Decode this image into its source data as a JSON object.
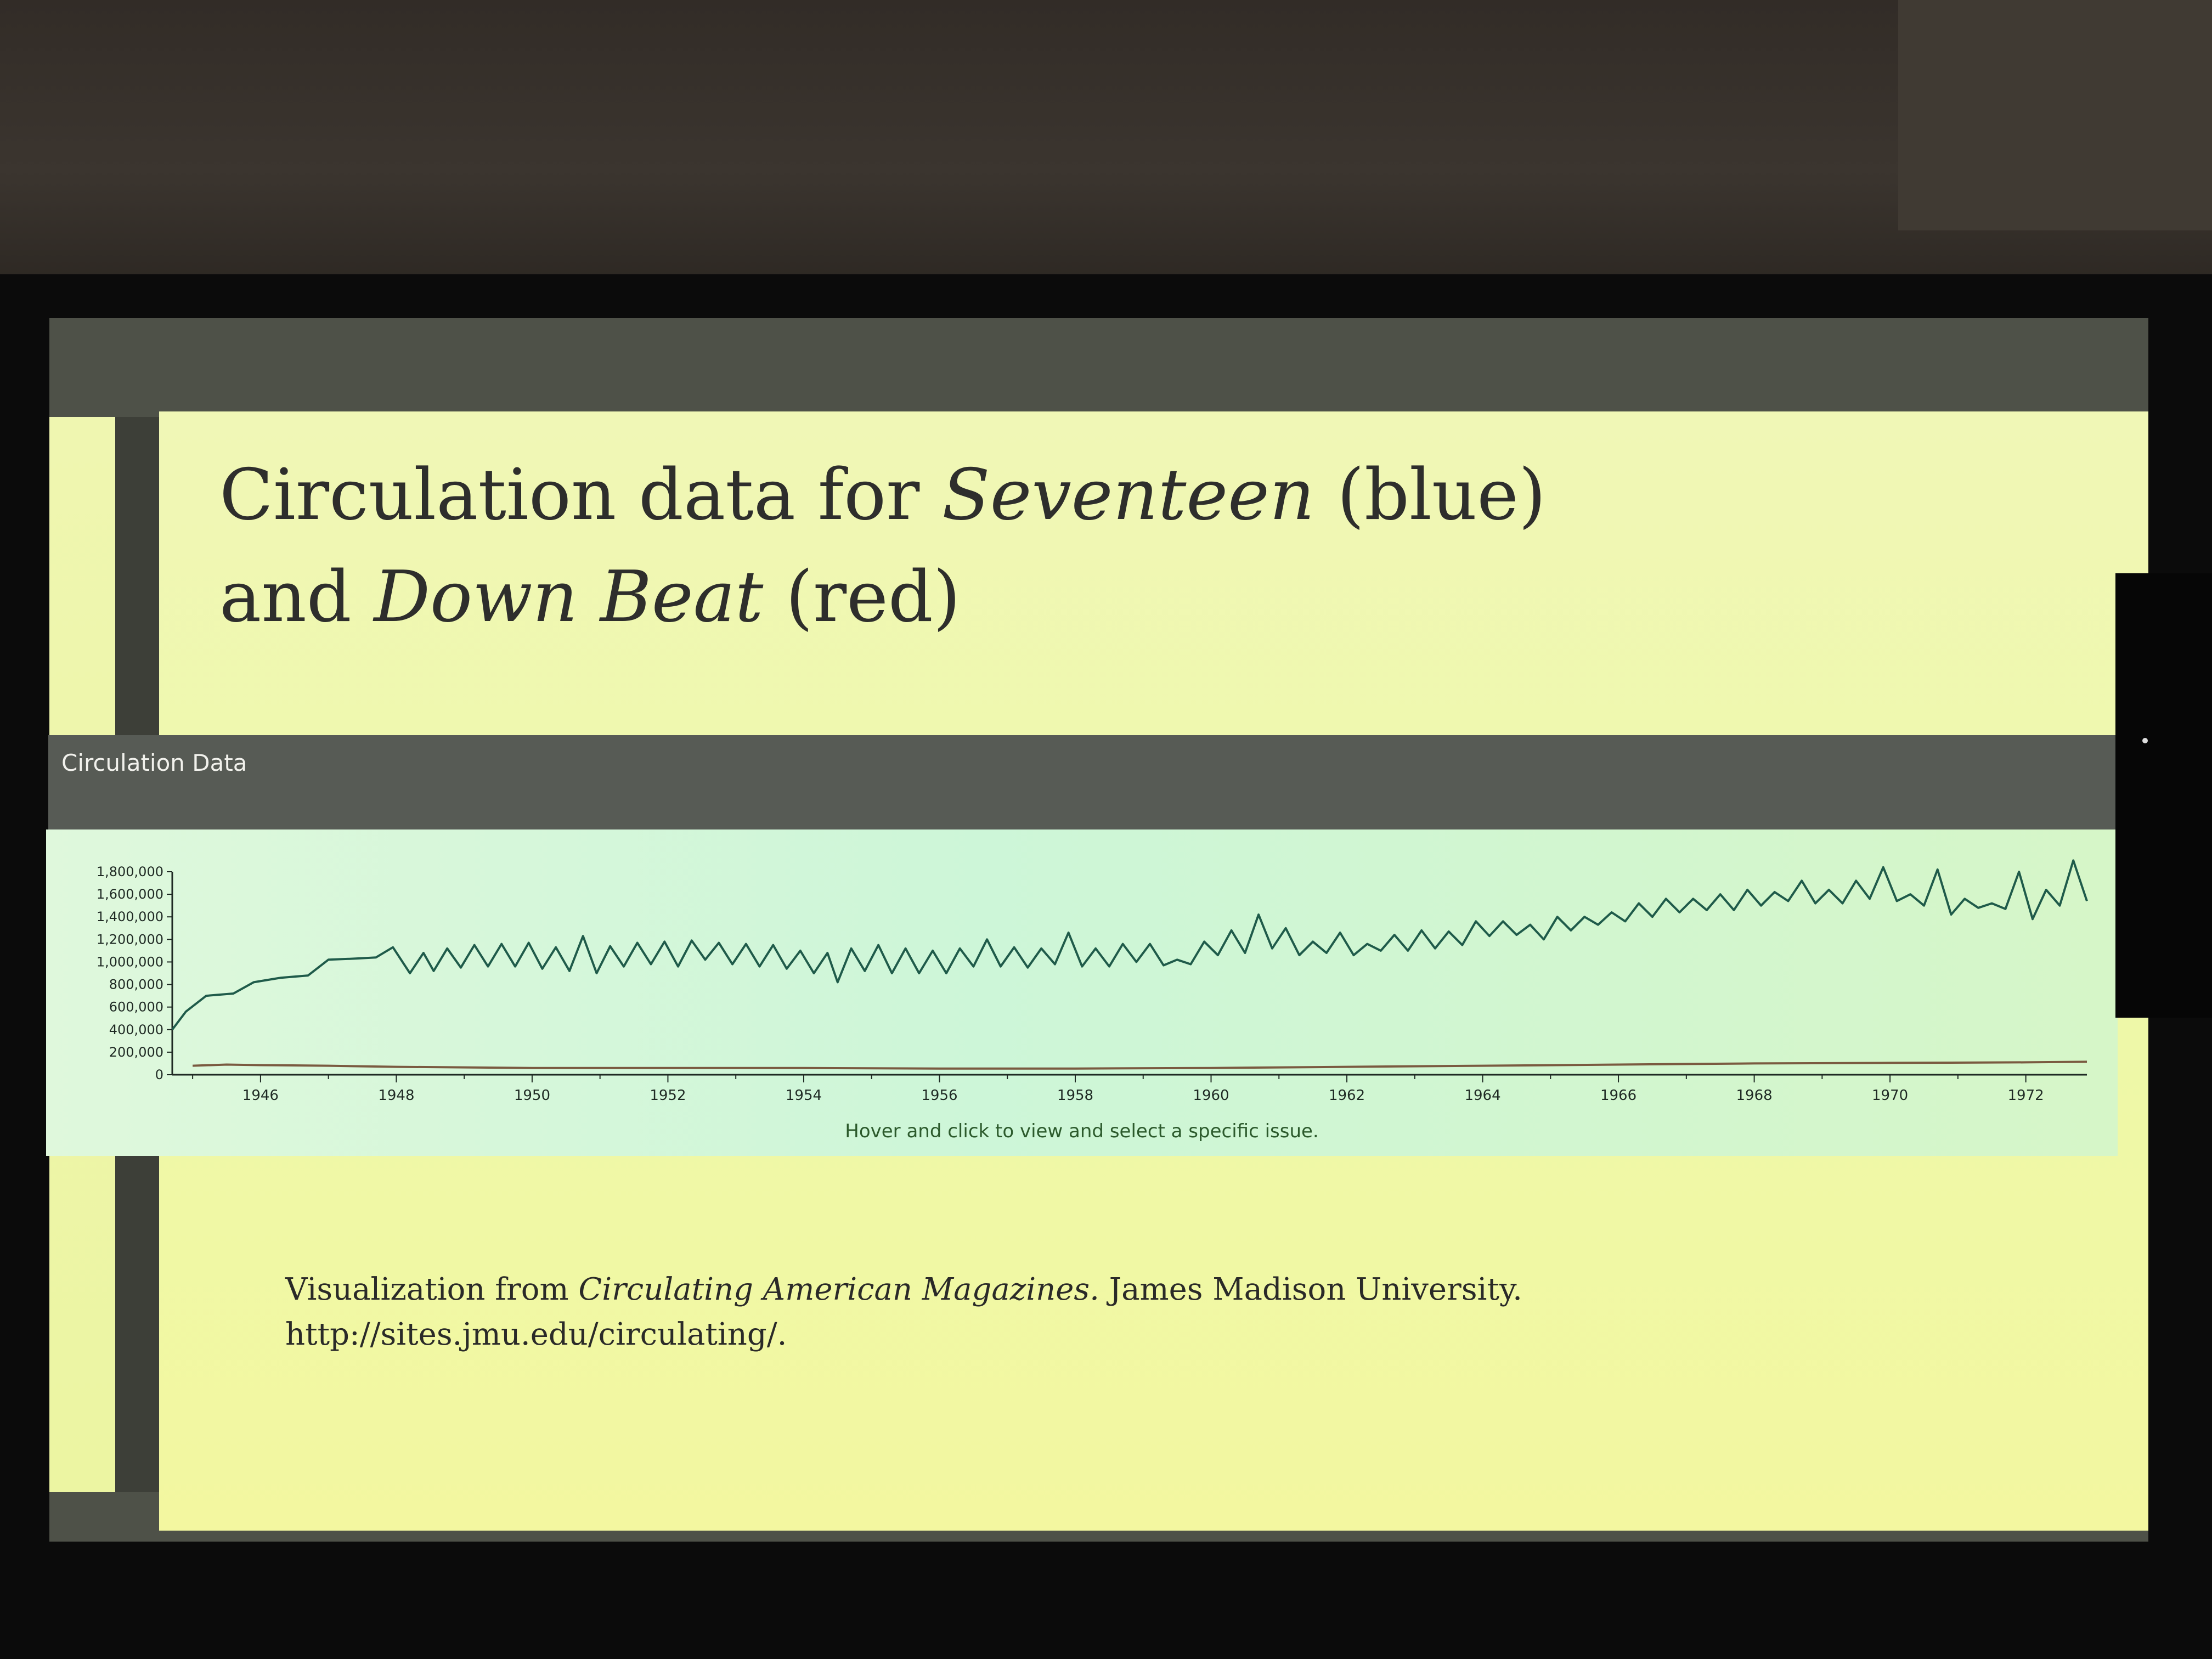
{
  "slide": {
    "title_prefix": "Circulation data for ",
    "title_magazine1": "Seventeen",
    "title_middle": " (blue)",
    "title_line2_prefix": "and ",
    "title_magazine2": "Down Beat",
    "title_suffix": " (red)"
  },
  "widget": {
    "header_label": "Circulation Data",
    "hint": "Hover and click to view and select a specific issue."
  },
  "citation": {
    "prefix": "Visualization from ",
    "source_title": "Circulating American Magazines.",
    "institution": " James Madison University.",
    "url": "http://sites.jmu.edu/circulating/."
  },
  "colors": {
    "seventeen_line": "#1f5b4a",
    "downbeat_line": "#7a5a40",
    "axis": "#1f2a24"
  },
  "chart_data": {
    "type": "line",
    "title": "",
    "xlabel": "",
    "ylabel": "",
    "xlim": [
      1944.7,
      1972.9
    ],
    "ylim": [
      0,
      1800000
    ],
    "x_ticks": [
      "1946",
      "1948",
      "1950",
      "1952",
      "1954",
      "1956",
      "1958",
      "1960",
      "1962",
      "1964",
      "1966",
      "1968",
      "1970",
      "1972"
    ],
    "y_ticks": [
      "0",
      "200,000",
      "400,000",
      "600,000",
      "800,000",
      "1,000,000",
      "1,200,000",
      "1,400,000",
      "1,600,000",
      "1,800,000"
    ],
    "grid": false,
    "legend": "none",
    "series": [
      {
        "color": "#1f5b4a",
        "points": [
          [
            1944.7,
            400000
          ],
          [
            1944.9,
            560000
          ],
          [
            1945.2,
            700000
          ],
          [
            1945.6,
            720000
          ],
          [
            1945.9,
            820000
          ],
          [
            1946.3,
            860000
          ],
          [
            1946.7,
            880000
          ],
          [
            1947.0,
            1020000
          ],
          [
            1947.4,
            1030000
          ],
          [
            1947.7,
            1040000
          ],
          [
            1947.95,
            1130000
          ],
          [
            1948.2,
            900000
          ],
          [
            1948.4,
            1080000
          ],
          [
            1948.55,
            920000
          ],
          [
            1948.75,
            1120000
          ],
          [
            1948.95,
            950000
          ],
          [
            1949.15,
            1150000
          ],
          [
            1949.35,
            960000
          ],
          [
            1949.55,
            1160000
          ],
          [
            1949.75,
            960000
          ],
          [
            1949.95,
            1170000
          ],
          [
            1950.15,
            940000
          ],
          [
            1950.35,
            1130000
          ],
          [
            1950.55,
            920000
          ],
          [
            1950.75,
            1230000
          ],
          [
            1950.95,
            900000
          ],
          [
            1951.15,
            1140000
          ],
          [
            1951.35,
            960000
          ],
          [
            1951.55,
            1170000
          ],
          [
            1951.75,
            980000
          ],
          [
            1951.95,
            1180000
          ],
          [
            1952.15,
            960000
          ],
          [
            1952.35,
            1190000
          ],
          [
            1952.55,
            1020000
          ],
          [
            1952.75,
            1170000
          ],
          [
            1952.95,
            980000
          ],
          [
            1953.15,
            1160000
          ],
          [
            1953.35,
            960000
          ],
          [
            1953.55,
            1150000
          ],
          [
            1953.75,
            940000
          ],
          [
            1953.95,
            1100000
          ],
          [
            1954.15,
            900000
          ],
          [
            1954.35,
            1080000
          ],
          [
            1954.5,
            820000
          ],
          [
            1954.7,
            1120000
          ],
          [
            1954.9,
            920000
          ],
          [
            1955.1,
            1150000
          ],
          [
            1955.3,
            900000
          ],
          [
            1955.5,
            1120000
          ],
          [
            1955.7,
            900000
          ],
          [
            1955.9,
            1100000
          ],
          [
            1956.1,
            900000
          ],
          [
            1956.3,
            1120000
          ],
          [
            1956.5,
            960000
          ],
          [
            1956.7,
            1200000
          ],
          [
            1956.9,
            960000
          ],
          [
            1957.1,
            1130000
          ],
          [
            1957.3,
            950000
          ],
          [
            1957.5,
            1120000
          ],
          [
            1957.7,
            980000
          ],
          [
            1957.9,
            1260000
          ],
          [
            1958.1,
            960000
          ],
          [
            1958.3,
            1120000
          ],
          [
            1958.5,
            960000
          ],
          [
            1958.7,
            1160000
          ],
          [
            1958.9,
            1000000
          ],
          [
            1959.1,
            1160000
          ],
          [
            1959.3,
            970000
          ],
          [
            1959.5,
            1020000
          ],
          [
            1959.7,
            980000
          ],
          [
            1959.9,
            1180000
          ],
          [
            1960.1,
            1060000
          ],
          [
            1960.3,
            1280000
          ],
          [
            1960.5,
            1080000
          ],
          [
            1960.7,
            1420000
          ],
          [
            1960.9,
            1120000
          ],
          [
            1961.1,
            1300000
          ],
          [
            1961.3,
            1060000
          ],
          [
            1961.5,
            1180000
          ],
          [
            1961.7,
            1080000
          ],
          [
            1961.9,
            1260000
          ],
          [
            1962.1,
            1060000
          ],
          [
            1962.3,
            1160000
          ],
          [
            1962.5,
            1100000
          ],
          [
            1962.7,
            1240000
          ],
          [
            1962.9,
            1100000
          ],
          [
            1963.1,
            1280000
          ],
          [
            1963.3,
            1120000
          ],
          [
            1963.5,
            1270000
          ],
          [
            1963.7,
            1150000
          ],
          [
            1963.9,
            1360000
          ],
          [
            1964.1,
            1230000
          ],
          [
            1964.3,
            1360000
          ],
          [
            1964.5,
            1240000
          ],
          [
            1964.7,
            1330000
          ],
          [
            1964.9,
            1200000
          ],
          [
            1965.1,
            1400000
          ],
          [
            1965.3,
            1280000
          ],
          [
            1965.5,
            1400000
          ],
          [
            1965.7,
            1330000
          ],
          [
            1965.9,
            1440000
          ],
          [
            1966.1,
            1360000
          ],
          [
            1966.3,
            1520000
          ],
          [
            1966.5,
            1400000
          ],
          [
            1966.7,
            1560000
          ],
          [
            1966.9,
            1440000
          ],
          [
            1967.1,
            1560000
          ],
          [
            1967.3,
            1460000
          ],
          [
            1967.5,
            1600000
          ],
          [
            1967.7,
            1460000
          ],
          [
            1967.9,
            1640000
          ],
          [
            1968.1,
            1500000
          ],
          [
            1968.3,
            1620000
          ],
          [
            1968.5,
            1540000
          ],
          [
            1968.7,
            1720000
          ],
          [
            1968.9,
            1520000
          ],
          [
            1969.1,
            1640000
          ],
          [
            1969.3,
            1520000
          ],
          [
            1969.5,
            1720000
          ],
          [
            1969.7,
            1560000
          ],
          [
            1969.9,
            1840000
          ],
          [
            1970.1,
            1540000
          ],
          [
            1970.3,
            1600000
          ],
          [
            1970.5,
            1500000
          ],
          [
            1970.7,
            1820000
          ],
          [
            1970.9,
            1420000
          ],
          [
            1971.1,
            1560000
          ],
          [
            1971.3,
            1480000
          ],
          [
            1971.5,
            1520000
          ],
          [
            1971.7,
            1470000
          ],
          [
            1971.9,
            1800000
          ],
          [
            1972.1,
            1380000
          ],
          [
            1972.3,
            1640000
          ],
          [
            1972.5,
            1500000
          ],
          [
            1972.7,
            1900000
          ],
          [
            1972.9,
            1540000
          ]
        ]
      },
      {
        "color": "#7a5a40",
        "points": [
          [
            1945.0,
            80000
          ],
          [
            1945.5,
            90000
          ],
          [
            1946.0,
            85000
          ],
          [
            1947.0,
            80000
          ],
          [
            1948.0,
            70000
          ],
          [
            1950.0,
            60000
          ],
          [
            1952.0,
            60000
          ],
          [
            1954.0,
            60000
          ],
          [
            1956.0,
            55000
          ],
          [
            1958.0,
            55000
          ],
          [
            1960.0,
            60000
          ],
          [
            1962.0,
            70000
          ],
          [
            1964.0,
            80000
          ],
          [
            1966.0,
            90000
          ],
          [
            1968.0,
            100000
          ],
          [
            1970.0,
            105000
          ],
          [
            1972.0,
            110000
          ],
          [
            1972.9,
            115000
          ]
        ]
      }
    ]
  }
}
